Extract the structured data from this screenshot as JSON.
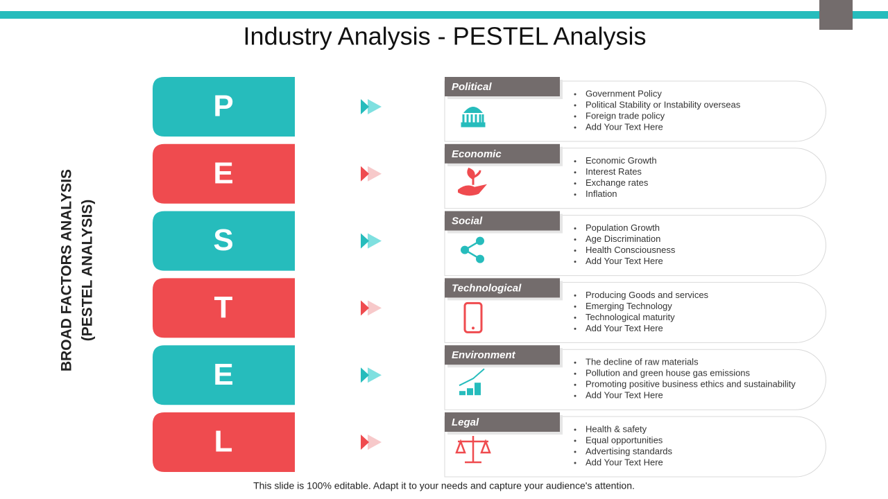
{
  "title": "Industry Analysis - PESTEL Analysis",
  "side_label": [
    "BROAD FACTORS ANALYSIS",
    "(PESTEL ANALYSIS)"
  ],
  "rows": [
    {
      "letter": "P",
      "category": "Political",
      "bullets": [
        "Government  Policy",
        "Political Stability or Instability overseas",
        "Foreign  trade policy",
        "Add Your Text Here"
      ]
    },
    {
      "letter": "E",
      "category": "Economic",
      "bullets": [
        "Economic Growth",
        "Interest Rates",
        "Exchange rates",
        "Inflation"
      ]
    },
    {
      "letter": "S",
      "category": "Social",
      "bullets": [
        "Population Growth",
        "Age Discrimination",
        "Health Consciousness",
        "Add Your Text Here"
      ]
    },
    {
      "letter": "T",
      "category": "Technological",
      "bullets": [
        "Producing Goods and services",
        "Emerging Technology",
        "Technological  maturity",
        "Add Your Text Here"
      ]
    },
    {
      "letter": "E",
      "category": "Environment",
      "bullets": [
        "The decline of raw materials",
        "Pollution and green house gas emissions",
        "Promoting positive  business ethics and sustainability",
        "Add Your Text Here"
      ]
    },
    {
      "letter": "L",
      "category": "Legal",
      "bullets": [
        "Health & safety",
        "Equal opportunities",
        "Advertising standards",
        "Add Your Text Here"
      ]
    }
  ],
  "footer": "This slide is 100% editable. Adapt it to your needs and capture your audience's attention."
}
